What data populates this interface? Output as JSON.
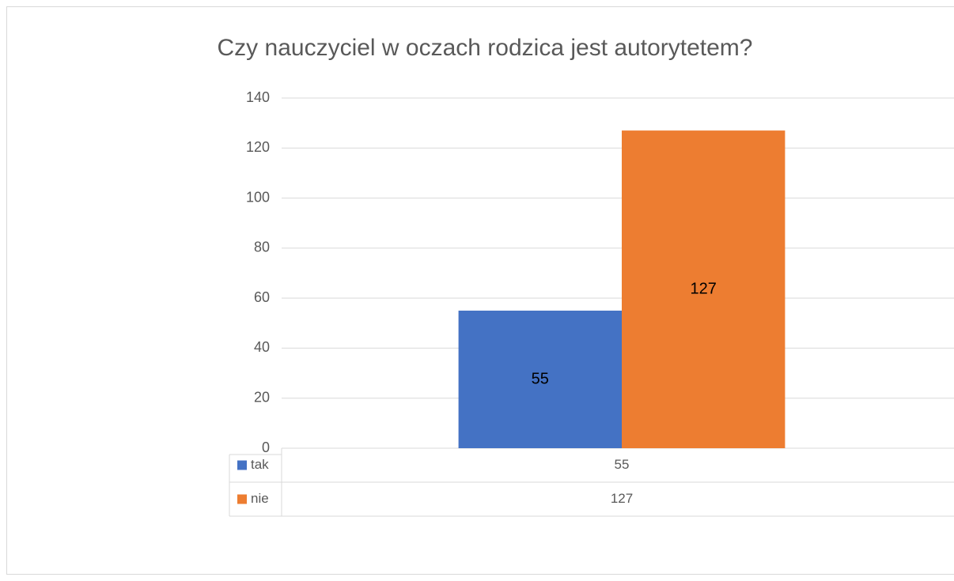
{
  "chart_data": {
    "type": "bar",
    "title": "Czy nauczyciel w oczach rodzica jest autorytetem?",
    "categories": [
      null
    ],
    "series": [
      {
        "name": "tak",
        "color": "#4472c4",
        "values": [
          55
        ]
      },
      {
        "name": "nie",
        "color": "#ed7d31",
        "values": [
          127
        ]
      }
    ],
    "ylim": [
      0,
      140
    ],
    "yticks": [
      0,
      20,
      40,
      60,
      80,
      100,
      120,
      140
    ],
    "grid": true,
    "data_table": true
  }
}
